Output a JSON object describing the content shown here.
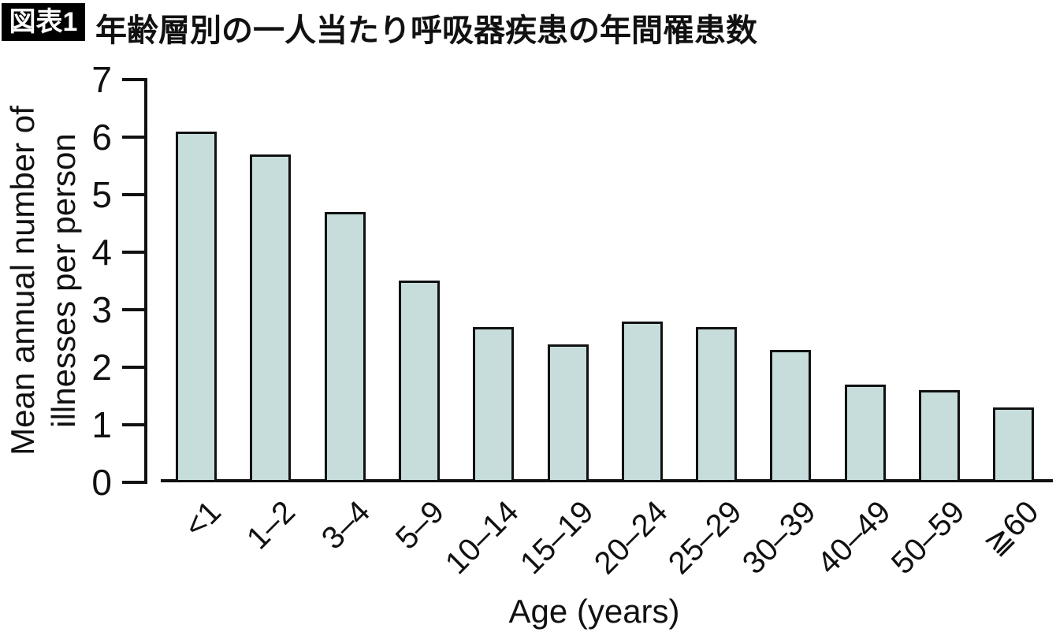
{
  "header": {
    "figure_label": "図表1",
    "title": "年齢層別の一人当たり呼吸器疾患の年間罹患数"
  },
  "chart_data": {
    "type": "bar",
    "title": "年齢層別の一人当たり呼吸器疾患の年間罹患数",
    "categories": [
      "<1",
      "1–2",
      "3–4",
      "5–9",
      "10–14",
      "15–19",
      "20–24",
      "25–29",
      "30–39",
      "40–49",
      "50–59",
      "≧60"
    ],
    "values": [
      6.1,
      5.7,
      4.7,
      3.5,
      2.7,
      2.4,
      2.8,
      2.7,
      2.3,
      1.7,
      1.6,
      1.3
    ],
    "xlabel": "Age (years)",
    "ylabel": "Mean annual number of illnesses per person",
    "ylabel_lines": [
      "Mean annual number of",
      "illnesses per person"
    ],
    "ylim": [
      0,
      7
    ],
    "yticks": [
      0,
      1,
      2,
      3,
      4,
      5,
      6,
      7
    ],
    "grid": false,
    "legend": "none",
    "colors": {
      "bar_fill": "#c6dddc",
      "bar_border": "#111111",
      "axis": "#111111",
      "text": "#111111",
      "background": "#ffffff",
      "badge_bg": "#000000",
      "badge_text": "#ffffff"
    }
  }
}
